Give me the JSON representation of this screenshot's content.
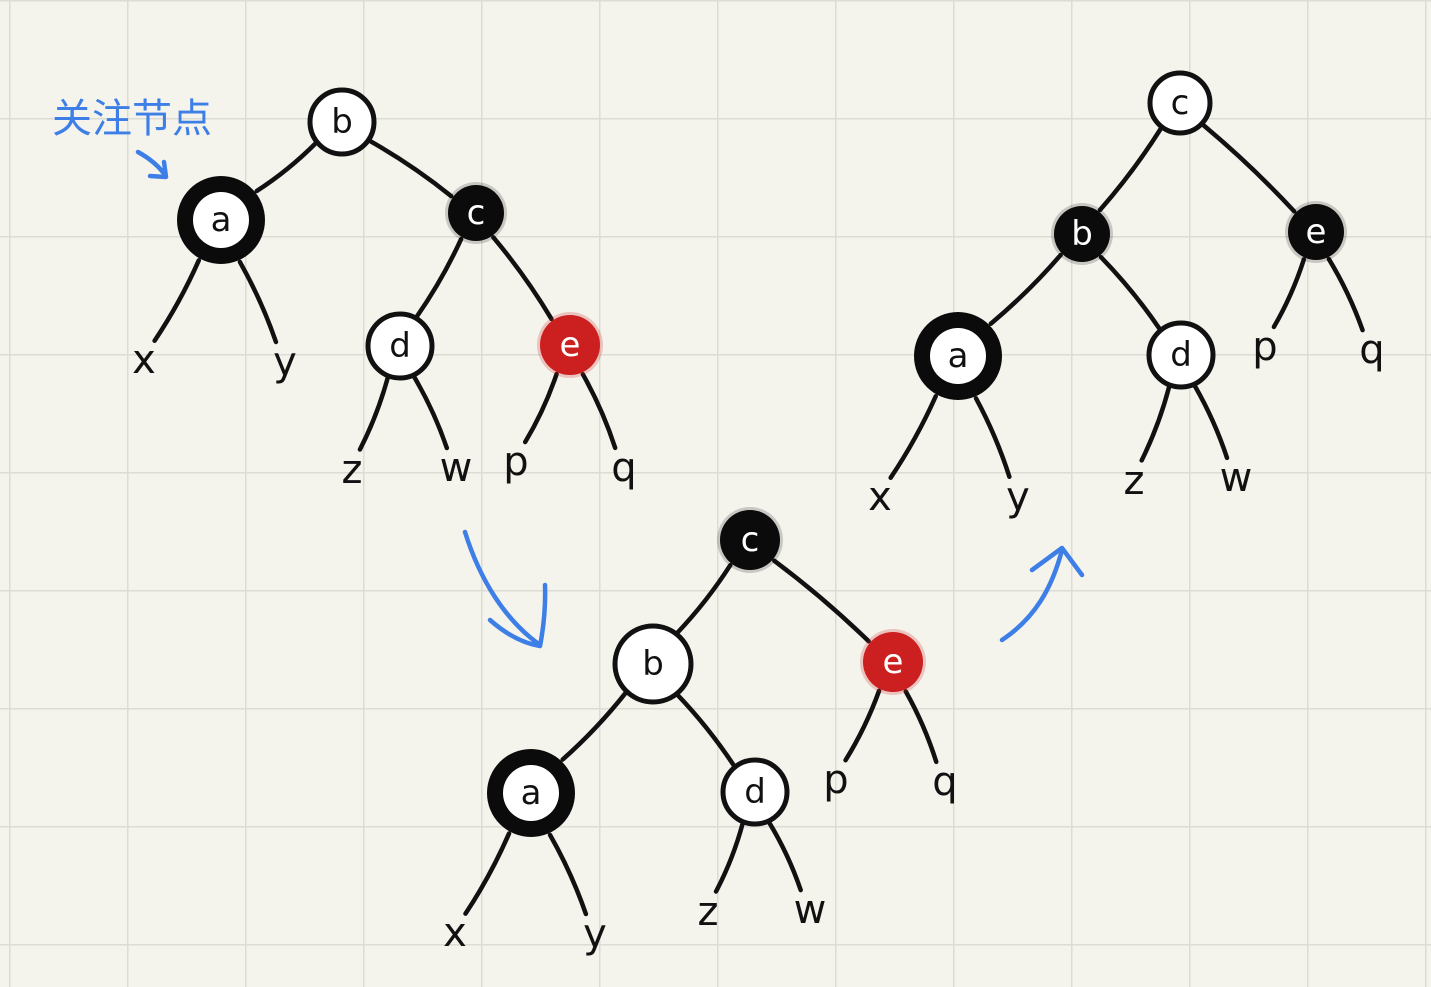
{
  "annotation": "关注节点",
  "colors": {
    "black": "#0b0b0b",
    "red": "#cc1f1f",
    "white": "#ffffff",
    "arrow": "#3d7fe6"
  },
  "trees": [
    {
      "id": "tree-1",
      "nodes": [
        {
          "id": "b",
          "label": "b",
          "kind": "white"
        },
        {
          "id": "a",
          "label": "a",
          "kind": "focus"
        },
        {
          "id": "c",
          "label": "c",
          "kind": "black"
        },
        {
          "id": "d",
          "label": "d",
          "kind": "white"
        },
        {
          "id": "e",
          "label": "e",
          "kind": "red"
        }
      ],
      "leaves": [
        {
          "id": "x",
          "label": "x"
        },
        {
          "id": "y",
          "label": "y"
        },
        {
          "id": "z",
          "label": "z"
        },
        {
          "id": "w",
          "label": "w"
        },
        {
          "id": "p",
          "label": "p"
        },
        {
          "id": "q",
          "label": "q"
        }
      ]
    },
    {
      "id": "tree-2",
      "nodes": [
        {
          "id": "c",
          "label": "c",
          "kind": "black"
        },
        {
          "id": "b",
          "label": "b",
          "kind": "white"
        },
        {
          "id": "e",
          "label": "e",
          "kind": "red"
        },
        {
          "id": "a",
          "label": "a",
          "kind": "focus"
        },
        {
          "id": "d",
          "label": "d",
          "kind": "white"
        }
      ],
      "leaves": [
        {
          "id": "x",
          "label": "x"
        },
        {
          "id": "y",
          "label": "y"
        },
        {
          "id": "z",
          "label": "z"
        },
        {
          "id": "w",
          "label": "w"
        },
        {
          "id": "p",
          "label": "p"
        },
        {
          "id": "q",
          "label": "q"
        }
      ]
    },
    {
      "id": "tree-3",
      "nodes": [
        {
          "id": "c",
          "label": "c",
          "kind": "white"
        },
        {
          "id": "b",
          "label": "b",
          "kind": "black"
        },
        {
          "id": "e",
          "label": "e",
          "kind": "black"
        },
        {
          "id": "a",
          "label": "a",
          "kind": "focus"
        },
        {
          "id": "d",
          "label": "d",
          "kind": "white"
        }
      ],
      "leaves": [
        {
          "id": "x",
          "label": "x"
        },
        {
          "id": "y",
          "label": "y"
        },
        {
          "id": "z",
          "label": "z"
        },
        {
          "id": "w",
          "label": "w"
        },
        {
          "id": "p",
          "label": "p"
        },
        {
          "id": "q",
          "label": "q"
        }
      ]
    }
  ]
}
